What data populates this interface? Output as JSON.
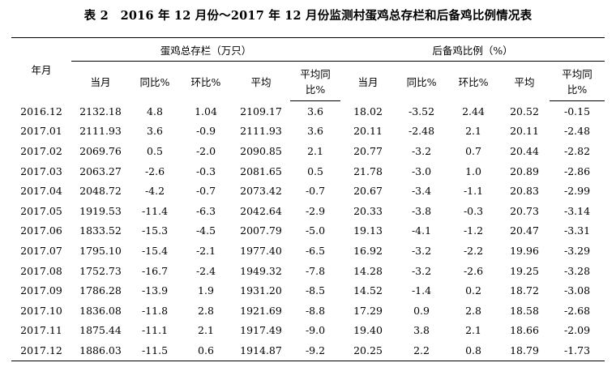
{
  "caption": "表 2　2016 年 12 月份～2017 年 12 月份监测村蛋鸡总存栏和后备鸡比例情况表",
  "header": {
    "year_month": "年月",
    "group_stock": "蛋鸡总存栏（万只）",
    "group_ratio": "后备鸡比例（%）",
    "cols": {
      "current": "当月",
      "yoy": "同比%",
      "mom": "环比%",
      "avg": "平均",
      "avg_yoy_line1": "平均同",
      "avg_yoy_line2": "比%"
    }
  },
  "rows": [
    [
      "2016.12",
      "2132.18",
      "4.8",
      "1.04",
      "2109.17",
      "3.6",
      "18.02",
      "-3.52",
      "2.44",
      "20.52",
      "-0.15"
    ],
    [
      "2017.01",
      "2111.93",
      "3.6",
      "-0.9",
      "2111.93",
      "3.6",
      "20.11",
      "-2.48",
      "2.1",
      "20.11",
      "-2.48"
    ],
    [
      "2017.02",
      "2069.76",
      "0.5",
      "-2.0",
      "2090.85",
      "2.1",
      "20.77",
      "-3.2",
      "0.7",
      "20.44",
      "-2.82"
    ],
    [
      "2017.03",
      "2063.27",
      "-2.6",
      "-0.3",
      "2081.65",
      "0.5",
      "21.78",
      "-3.0",
      "1.0",
      "20.89",
      "-2.86"
    ],
    [
      "2017.04",
      "2048.72",
      "-4.2",
      "-0.7",
      "2073.42",
      "-0.7",
      "20.67",
      "-3.4",
      "-1.1",
      "20.83",
      "-2.99"
    ],
    [
      "2017.05",
      "1919.53",
      "-11.4",
      "-6.3",
      "2042.64",
      "-2.9",
      "20.33",
      "-3.8",
      "-0.3",
      "20.73",
      "-3.14"
    ],
    [
      "2017.06",
      "1833.52",
      "-15.3",
      "-4.5",
      "2007.79",
      "-5.0",
      "19.13",
      "-4.1",
      "-1.2",
      "20.47",
      "-3.31"
    ],
    [
      "2017.07",
      "1795.10",
      "-15.4",
      "-2.1",
      "1977.40",
      "-6.5",
      "16.92",
      "-3.2",
      "-2.2",
      "19.96",
      "-3.29"
    ],
    [
      "2017.08",
      "1752.73",
      "-16.7",
      "-2.4",
      "1949.32",
      "-7.8",
      "14.28",
      "-3.2",
      "-2.6",
      "19.25",
      "-3.28"
    ],
    [
      "2017.09",
      "1786.28",
      "-13.9",
      "1.9",
      "1931.20",
      "-8.5",
      "14.52",
      "-1.4",
      "0.2",
      "18.72",
      "-3.08"
    ],
    [
      "2017.10",
      "1836.08",
      "-11.8",
      "2.8",
      "1921.69",
      "-8.8",
      "17.29",
      "0.9",
      "2.8",
      "18.58",
      "-2.68"
    ],
    [
      "2017.11",
      "1875.44",
      "-11.1",
      "2.1",
      "1917.49",
      "-9.0",
      "19.40",
      "3.8",
      "2.1",
      "18.66",
      "-2.09"
    ],
    [
      "2017.12",
      "1886.03",
      "-11.5",
      "0.6",
      "1914.87",
      "-9.2",
      "20.25",
      "2.2",
      "0.8",
      "18.79",
      "-1.73"
    ]
  ]
}
